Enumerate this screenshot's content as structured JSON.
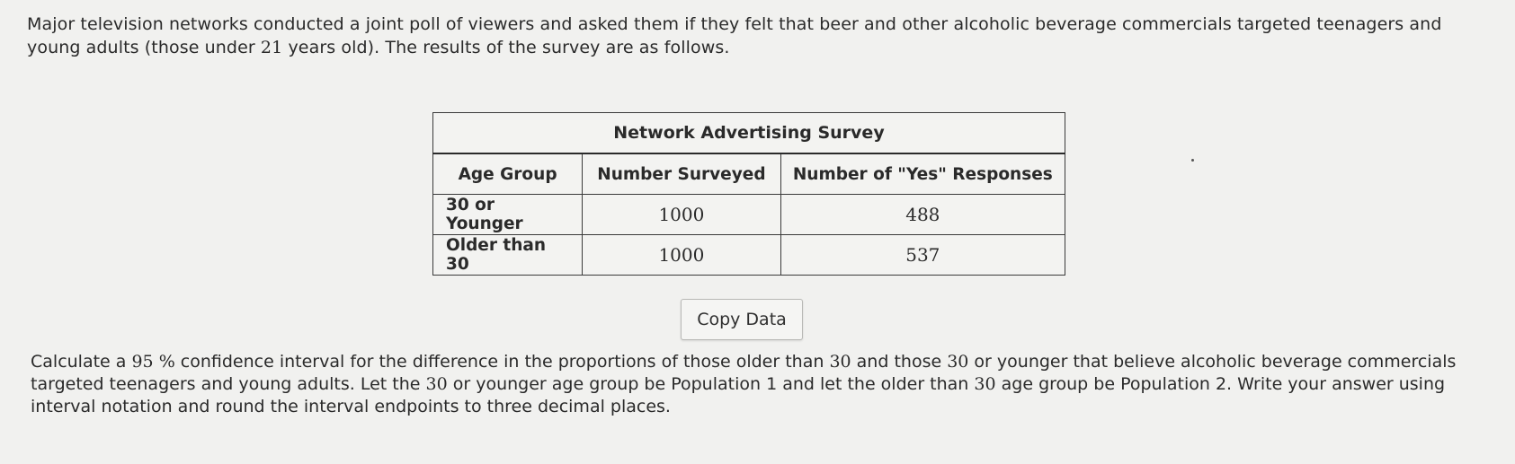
{
  "intro": {
    "before_num": "Major television networks conducted a joint poll of viewers and asked them if they felt that beer and other alcoholic beverage commercials targeted teenagers and young adults (those under ",
    "num": "21",
    "after_num": " years old). The results of the survey are as follows."
  },
  "table": {
    "caption": "Network Advertising Survey",
    "headers": [
      "Age Group",
      "Number Surveyed",
      "Number of \"Yes\" Responses"
    ],
    "rows": [
      {
        "group": "30 or Younger",
        "surveyed": "1000",
        "yes": "488"
      },
      {
        "group": "Older than 30",
        "surveyed": "1000",
        "yes": "537"
      }
    ]
  },
  "copy_button": {
    "label": "Copy Data"
  },
  "question": {
    "p1": "Calculate a ",
    "n1": "95",
    "pct": " %",
    "p2": " confidence interval for the difference in the proportions of those older than ",
    "n2": "30",
    "p3": " and those ",
    "n3": "30",
    "p4": " or younger that believe alcoholic beverage commercials targeted teenagers and young adults. Let the ",
    "n4": "30",
    "p5": " or younger age group be Population 1 and let the older than ",
    "n5": "30",
    "p6": " age group be Population 2. Write your answer using interval notation and round the interval endpoints to three decimal places."
  }
}
